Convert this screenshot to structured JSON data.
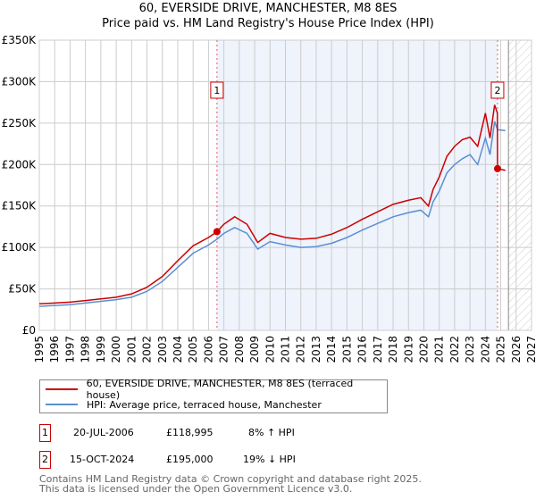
{
  "chart_data": {
    "type": "line",
    "title": "60, EVERSIDE DRIVE, MANCHESTER, M8 8ES",
    "subtitle": "Price paid vs. HM Land Registry's House Price Index (HPI)",
    "ylim": [
      0,
      350000
    ],
    "xlim": [
      1995,
      2027
    ],
    "yticks": [
      {
        "v": 0,
        "l": "£0"
      },
      {
        "v": 50000,
        "l": "£50K"
      },
      {
        "v": 100000,
        "l": "£100K"
      },
      {
        "v": 150000,
        "l": "£150K"
      },
      {
        "v": 200000,
        "l": "£200K"
      },
      {
        "v": 250000,
        "l": "£250K"
      },
      {
        "v": 300000,
        "l": "£300K"
      },
      {
        "v": 350000,
        "l": "£350K"
      }
    ],
    "xticks": [
      "1995",
      "1996",
      "1997",
      "1998",
      "1999",
      "2000",
      "2001",
      "2002",
      "2003",
      "2004",
      "2005",
      "2006",
      "2007",
      "2008",
      "2009",
      "2010",
      "2011",
      "2012",
      "2013",
      "2014",
      "2015",
      "2016",
      "2017",
      "2018",
      "2019",
      "2020",
      "2021",
      "2022",
      "2023",
      "2024",
      "2025",
      "2026",
      "2027"
    ],
    "colors": {
      "property": "#cc0000",
      "hpi": "#5b8fd0",
      "shade": "#eef3fc"
    },
    "series": [
      {
        "name": "60, EVERSIDE DRIVE, MANCHESTER, M8 8ES (terraced house)",
        "x": [
          1995,
          1996,
          1997,
          1998,
          1999,
          2000,
          2001,
          2002,
          2003,
          2004,
          2005,
          2006,
          2006.55,
          2007,
          2007.7,
          2008.5,
          2009.2,
          2010,
          2011,
          2012,
          2013,
          2014,
          2015,
          2016,
          2017,
          2018,
          2019,
          2019.8,
          2020.3,
          2020.6,
          2021,
          2021.5,
          2022,
          2022.5,
          2023,
          2023.5,
          2024,
          2024.3,
          2024.6,
          2024.78,
          2024.79,
          2025.3
        ],
        "y": [
          32000,
          33000,
          34000,
          36000,
          38000,
          40000,
          44000,
          52000,
          65000,
          84000,
          102000,
          112000,
          118995,
          128000,
          137000,
          128000,
          106000,
          117000,
          112000,
          110000,
          111000,
          116000,
          124000,
          134000,
          143000,
          152000,
          157000,
          160000,
          150000,
          170000,
          185000,
          210000,
          222000,
          230000,
          233000,
          222000,
          262000,
          232000,
          272000,
          262000,
          195000,
          193000
        ]
      },
      {
        "name": "HPI: Average price, terraced house, Manchester",
        "x": [
          1995,
          1996,
          1997,
          1998,
          1999,
          2000,
          2001,
          2002,
          2003,
          2004,
          2005,
          2006,
          2006.55,
          2007,
          2007.7,
          2008.5,
          2009.2,
          2010,
          2011,
          2012,
          2013,
          2014,
          2015,
          2016,
          2017,
          2018,
          2019,
          2019.8,
          2020.3,
          2020.6,
          2021,
          2021.5,
          2022,
          2022.5,
          2023,
          2023.5,
          2024,
          2024.3,
          2024.6,
          2024.79,
          2025.3
        ],
        "y": [
          29000,
          30000,
          31000,
          33000,
          35000,
          37000,
          40000,
          47000,
          59000,
          76000,
          93000,
          103000,
          110000,
          117000,
          124000,
          117000,
          98000,
          107000,
          103000,
          100000,
          101000,
          105000,
          112000,
          121000,
          129000,
          137000,
          142000,
          145000,
          137000,
          155000,
          168000,
          190000,
          200000,
          207000,
          212000,
          200000,
          232000,
          212000,
          252000,
          242000,
          241000
        ]
      }
    ],
    "sales": [
      {
        "n": "1",
        "x": 2006.55,
        "y": 118995
      },
      {
        "n": "2",
        "x": 2024.79,
        "y": 195000
      }
    ],
    "forecast_start": 2025.5
  },
  "legend": {
    "property": "60, EVERSIDE DRIVE, MANCHESTER, M8 8ES (terraced house)",
    "hpi": "HPI: Average price, terraced house, Manchester"
  },
  "table": [
    {
      "n": "1",
      "date": "20-JUL-2006",
      "price": "£118,995",
      "delta": "8% ↑ HPI"
    },
    {
      "n": "2",
      "date": "15-OCT-2024",
      "price": "£195,000",
      "delta": "19% ↓ HPI"
    }
  ],
  "footer": {
    "line1": "Contains HM Land Registry data © Crown copyright and database right 2025.",
    "line2": "This data is licensed under the Open Government Licence v3.0."
  }
}
